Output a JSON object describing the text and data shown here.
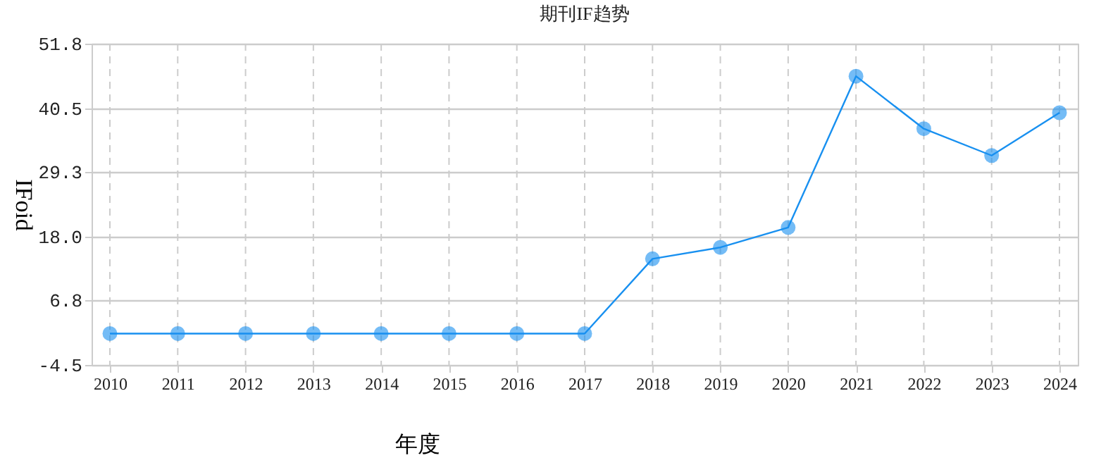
{
  "chart_data": {
    "type": "line",
    "title": "期刊IF趋势",
    "xlabel": "年度",
    "ylabel": "IFoid",
    "categories": [
      "2010",
      "2011",
      "2012",
      "2013",
      "2014",
      "2015",
      "2016",
      "2017",
      "2018",
      "2019",
      "2020",
      "2021",
      "2022",
      "2023",
      "2024"
    ],
    "series": [
      {
        "color": "#1890f0",
        "values": [
          1.0,
          1.0,
          1.0,
          1.0,
          1.0,
          1.0,
          1.0,
          1.0,
          14.1,
          16.1,
          19.6,
          46.1,
          36.9,
          32.2,
          39.7
        ]
      }
    ],
    "ylim": [
      -4.5,
      51.8
    ],
    "yticks": [
      {
        "value": -4.5,
        "label": "-4.5"
      },
      {
        "value": 6.8,
        "label": "6.8"
      },
      {
        "value": 18.0,
        "label": "18.0"
      },
      {
        "value": 29.3,
        "label": "29.3"
      },
      {
        "value": 40.5,
        "label": "40.5"
      },
      {
        "value": 51.8,
        "label": "51.8"
      }
    ],
    "grid": true,
    "marker": "circle"
  }
}
